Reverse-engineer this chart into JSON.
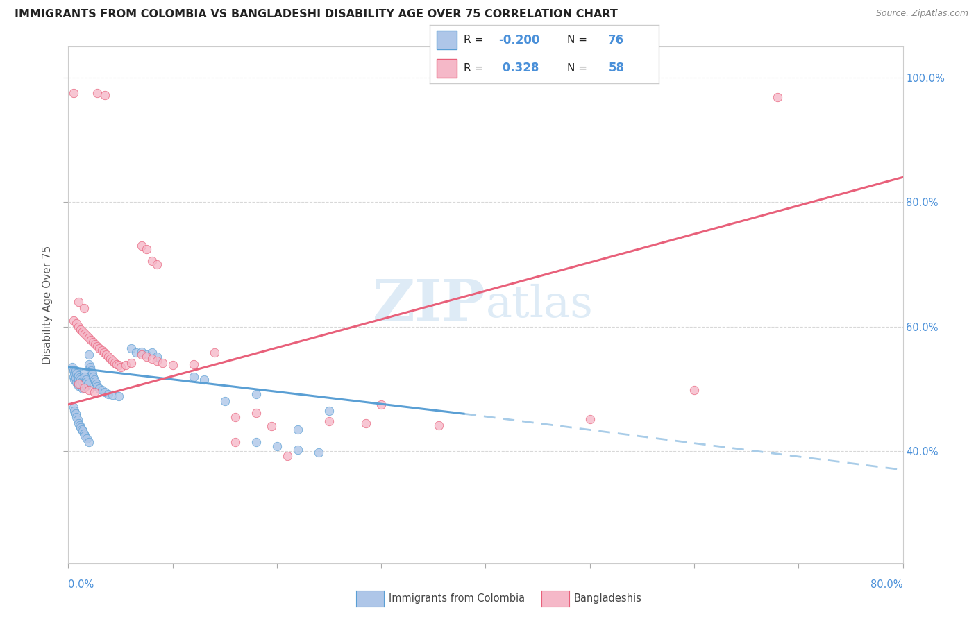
{
  "title": "IMMIGRANTS FROM COLOMBIA VS BANGLADESHI DISABILITY AGE OVER 75 CORRELATION CHART",
  "source": "Source: ZipAtlas.com",
  "ylabel": "Disability Age Over 75",
  "xlim": [
    0.0,
    0.8
  ],
  "ylim": [
    0.22,
    1.05
  ],
  "ytick_vals": [
    0.4,
    0.6,
    0.8,
    1.0
  ],
  "ytick_labels": [
    "40.0%",
    "60.0%",
    "80.0%",
    "100.0%"
  ],
  "xtick_vals": [
    0.0,
    0.1,
    0.2,
    0.3,
    0.4,
    0.5,
    0.6,
    0.7,
    0.8
  ],
  "legend_R_label": "R = ",
  "legend_blue_R": "-0.200",
  "legend_blue_N": "76",
  "legend_pink_R": "0.328",
  "legend_pink_N": "58",
  "blue_fill": "#aec6e8",
  "pink_fill": "#f5b8c8",
  "blue_edge": "#5a9fd4",
  "pink_edge": "#e8607a",
  "blue_line": "#5a9fd4",
  "pink_line": "#e8607a",
  "blue_dash": "#a8cce8",
  "label_color": "#4a90d9",
  "text_color": "#333333",
  "grid_color": "#d8d8d8",
  "watermark_color": "#c8dff0",
  "blue_scatter": [
    [
      0.004,
      0.535
    ],
    [
      0.005,
      0.53
    ],
    [
      0.005,
      0.52
    ],
    [
      0.006,
      0.525
    ],
    [
      0.006,
      0.515
    ],
    [
      0.007,
      0.53
    ],
    [
      0.007,
      0.518
    ],
    [
      0.008,
      0.525
    ],
    [
      0.008,
      0.51
    ],
    [
      0.009,
      0.52
    ],
    [
      0.009,
      0.508
    ],
    [
      0.01,
      0.522
    ],
    [
      0.01,
      0.515
    ],
    [
      0.01,
      0.505
    ],
    [
      0.011,
      0.518
    ],
    [
      0.011,
      0.51
    ],
    [
      0.012,
      0.515
    ],
    [
      0.012,
      0.507
    ],
    [
      0.013,
      0.512
    ],
    [
      0.013,
      0.505
    ],
    [
      0.014,
      0.51
    ],
    [
      0.014,
      0.5
    ],
    [
      0.015,
      0.525
    ],
    [
      0.015,
      0.51
    ],
    [
      0.016,
      0.52
    ],
    [
      0.016,
      0.508
    ],
    [
      0.017,
      0.515
    ],
    [
      0.017,
      0.505
    ],
    [
      0.018,
      0.512
    ],
    [
      0.019,
      0.508
    ],
    [
      0.02,
      0.555
    ],
    [
      0.02,
      0.54
    ],
    [
      0.021,
      0.535
    ],
    [
      0.022,
      0.53
    ],
    [
      0.023,
      0.525
    ],
    [
      0.024,
      0.52
    ],
    [
      0.025,
      0.515
    ],
    [
      0.026,
      0.512
    ],
    [
      0.027,
      0.508
    ],
    [
      0.028,
      0.504
    ],
    [
      0.03,
      0.5
    ],
    [
      0.032,
      0.498
    ],
    [
      0.035,
      0.495
    ],
    [
      0.038,
      0.492
    ],
    [
      0.042,
      0.49
    ],
    [
      0.048,
      0.488
    ],
    [
      0.005,
      0.47
    ],
    [
      0.006,
      0.465
    ],
    [
      0.007,
      0.46
    ],
    [
      0.008,
      0.455
    ],
    [
      0.009,
      0.45
    ],
    [
      0.01,
      0.445
    ],
    [
      0.011,
      0.442
    ],
    [
      0.012,
      0.438
    ],
    [
      0.013,
      0.435
    ],
    [
      0.014,
      0.432
    ],
    [
      0.015,
      0.428
    ],
    [
      0.016,
      0.425
    ],
    [
      0.018,
      0.42
    ],
    [
      0.02,
      0.415
    ],
    [
      0.06,
      0.565
    ],
    [
      0.065,
      0.558
    ],
    [
      0.07,
      0.56
    ],
    [
      0.075,
      0.555
    ],
    [
      0.08,
      0.558
    ],
    [
      0.085,
      0.552
    ],
    [
      0.12,
      0.52
    ],
    [
      0.13,
      0.515
    ],
    [
      0.15,
      0.48
    ],
    [
      0.18,
      0.492
    ],
    [
      0.22,
      0.435
    ],
    [
      0.25,
      0.465
    ],
    [
      0.18,
      0.415
    ],
    [
      0.2,
      0.408
    ],
    [
      0.22,
      0.402
    ],
    [
      0.24,
      0.398
    ]
  ],
  "pink_scatter": [
    [
      0.005,
      0.975
    ],
    [
      0.028,
      0.975
    ],
    [
      0.035,
      0.972
    ],
    [
      0.68,
      0.968
    ],
    [
      0.07,
      0.73
    ],
    [
      0.075,
      0.725
    ],
    [
      0.08,
      0.705
    ],
    [
      0.085,
      0.7
    ],
    [
      0.01,
      0.64
    ],
    [
      0.015,
      0.63
    ],
    [
      0.005,
      0.61
    ],
    [
      0.008,
      0.605
    ],
    [
      0.01,
      0.6
    ],
    [
      0.012,
      0.595
    ],
    [
      0.014,
      0.592
    ],
    [
      0.016,
      0.588
    ],
    [
      0.018,
      0.585
    ],
    [
      0.02,
      0.582
    ],
    [
      0.022,
      0.578
    ],
    [
      0.024,
      0.575
    ],
    [
      0.026,
      0.572
    ],
    [
      0.028,
      0.568
    ],
    [
      0.03,
      0.565
    ],
    [
      0.032,
      0.562
    ],
    [
      0.034,
      0.558
    ],
    [
      0.036,
      0.555
    ],
    [
      0.038,
      0.552
    ],
    [
      0.04,
      0.548
    ],
    [
      0.042,
      0.545
    ],
    [
      0.044,
      0.542
    ],
    [
      0.046,
      0.54
    ],
    [
      0.048,
      0.538
    ],
    [
      0.05,
      0.535
    ],
    [
      0.055,
      0.538
    ],
    [
      0.06,
      0.542
    ],
    [
      0.07,
      0.555
    ],
    [
      0.075,
      0.552
    ],
    [
      0.08,
      0.548
    ],
    [
      0.085,
      0.545
    ],
    [
      0.09,
      0.542
    ],
    [
      0.1,
      0.538
    ],
    [
      0.12,
      0.54
    ],
    [
      0.14,
      0.558
    ],
    [
      0.16,
      0.455
    ],
    [
      0.18,
      0.462
    ],
    [
      0.195,
      0.44
    ],
    [
      0.25,
      0.448
    ],
    [
      0.285,
      0.445
    ],
    [
      0.3,
      0.475
    ],
    [
      0.355,
      0.442
    ],
    [
      0.5,
      0.452
    ],
    [
      0.6,
      0.498
    ],
    [
      0.01,
      0.508
    ],
    [
      0.015,
      0.502
    ],
    [
      0.02,
      0.498
    ],
    [
      0.025,
      0.495
    ],
    [
      0.16,
      0.415
    ],
    [
      0.21,
      0.392
    ]
  ],
  "blue_trendline_solid": [
    [
      0.0,
      0.535
    ],
    [
      0.38,
      0.46
    ]
  ],
  "blue_trendline_dash": [
    [
      0.38,
      0.46
    ],
    [
      0.8,
      0.37
    ]
  ],
  "pink_trendline": [
    [
      0.0,
      0.475
    ],
    [
      0.8,
      0.84
    ]
  ]
}
